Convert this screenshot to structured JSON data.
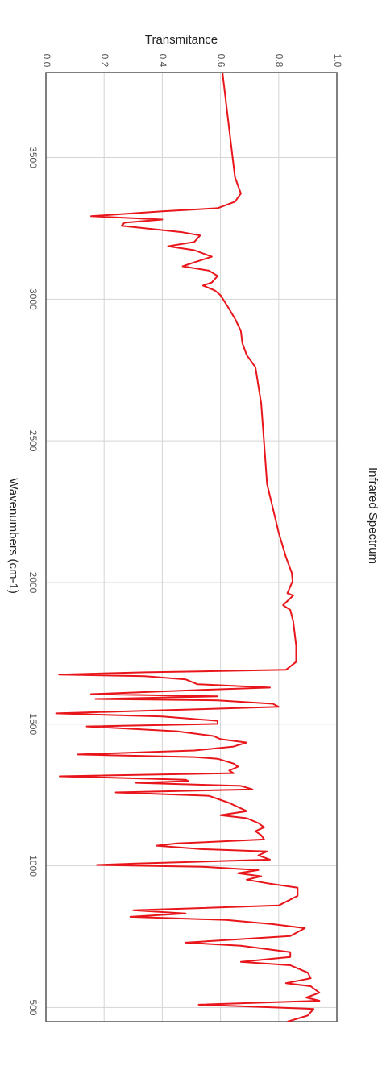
{
  "chart_data": {
    "type": "line",
    "title": "Infrared Spectrum",
    "x_label": "Wavenumbers (cm-1)",
    "y_label": "Transmitance",
    "x": [
      3800,
      3772,
      3686,
      3515,
      3430,
      3373,
      3344,
      3321,
      3310,
      3293,
      3281,
      3270,
      3259,
      3236,
      3225,
      3202,
      3187,
      3173,
      3150,
      3130,
      3116,
      3101,
      3082,
      3059,
      3048,
      3031,
      3014,
      2974,
      2931,
      2888,
      2845,
      2803,
      2760,
      2632,
      2489,
      2347,
      2262,
      2176,
      2090,
      2034,
      2005,
      1962,
      1954,
      1920,
      1903,
      1863,
      1777,
      1720,
      1692,
      1683,
      1675,
      1669,
      1658,
      1641,
      1629,
      1621,
      1606,
      1598,
      1589,
      1584,
      1572,
      1561,
      1549,
      1538,
      1527,
      1512,
      1501,
      1492,
      1475,
      1458,
      1447,
      1435,
      1421,
      1407,
      1393,
      1384,
      1378,
      1361,
      1350,
      1336,
      1327,
      1316,
      1304,
      1299,
      1293,
      1282,
      1270,
      1259,
      1247,
      1222,
      1193,
      1179,
      1168,
      1151,
      1136,
      1122,
      1108,
      1093,
      1079,
      1071,
      1059,
      1051,
      1037,
      1022,
      1008,
      1003,
      997,
      985,
      974,
      963,
      951,
      937,
      923,
      894,
      860,
      843,
      832,
      820,
      809,
      794,
      780,
      752,
      729,
      718,
      695,
      678,
      661,
      649,
      623,
      603,
      586,
      575,
      552,
      535,
      524,
      510,
      495,
      472,
      450
    ],
    "series": [
      {
        "name": "Transmitance",
        "color": "#e8161b",
        "values": [
          0.607,
          0.61,
          0.62,
          0.64,
          0.65,
          0.67,
          0.65,
          0.59,
          0.4,
          0.155,
          0.4,
          0.27,
          0.26,
          0.47,
          0.53,
          0.51,
          0.42,
          0.51,
          0.57,
          0.51,
          0.47,
          0.56,
          0.59,
          0.57,
          0.54,
          0.58,
          0.6,
          0.625,
          0.65,
          0.67,
          0.675,
          0.69,
          0.72,
          0.74,
          0.75,
          0.76,
          0.78,
          0.8,
          0.825,
          0.845,
          0.848,
          0.83,
          0.85,
          0.815,
          0.84,
          0.85,
          0.86,
          0.86,
          0.825,
          0.34,
          0.045,
          0.34,
          0.48,
          0.52,
          0.77,
          0.535,
          0.155,
          0.59,
          0.17,
          0.59,
          0.78,
          0.8,
          0.4,
          0.035,
          0.4,
          0.59,
          0.59,
          0.14,
          0.45,
          0.576,
          0.6,
          0.69,
          0.645,
          0.51,
          0.11,
          0.51,
          0.59,
          0.645,
          0.66,
          0.63,
          0.645,
          0.047,
          0.48,
          0.49,
          0.31,
          0.67,
          0.71,
          0.24,
          0.56,
          0.63,
          0.69,
          0.6,
          0.69,
          0.73,
          0.75,
          0.72,
          0.74,
          0.75,
          0.45,
          0.38,
          0.535,
          0.76,
          0.73,
          0.77,
          0.31,
          0.175,
          0.535,
          0.73,
          0.66,
          0.74,
          0.69,
          0.77,
          0.865,
          0.865,
          0.8,
          0.3,
          0.48,
          0.29,
          0.62,
          0.78,
          0.89,
          0.84,
          0.48,
          0.67,
          0.84,
          0.84,
          0.67,
          0.84,
          0.9,
          0.91,
          0.825,
          0.91,
          0.94,
          0.895,
          0.94,
          0.525,
          0.92,
          0.9,
          0.83
        ]
      }
    ],
    "xlim": [
      3800,
      450
    ],
    "xticks": [
      3500,
      3000,
      2500,
      2000,
      1500,
      1000,
      500
    ],
    "ylim": [
      0,
      1
    ],
    "yticks": [
      {
        "value": 0,
        "label": "0.0"
      },
      0.2,
      0.4,
      0.6,
      0.8,
      {
        "value": 1,
        "label": "1.0"
      }
    ],
    "grid": true
  }
}
